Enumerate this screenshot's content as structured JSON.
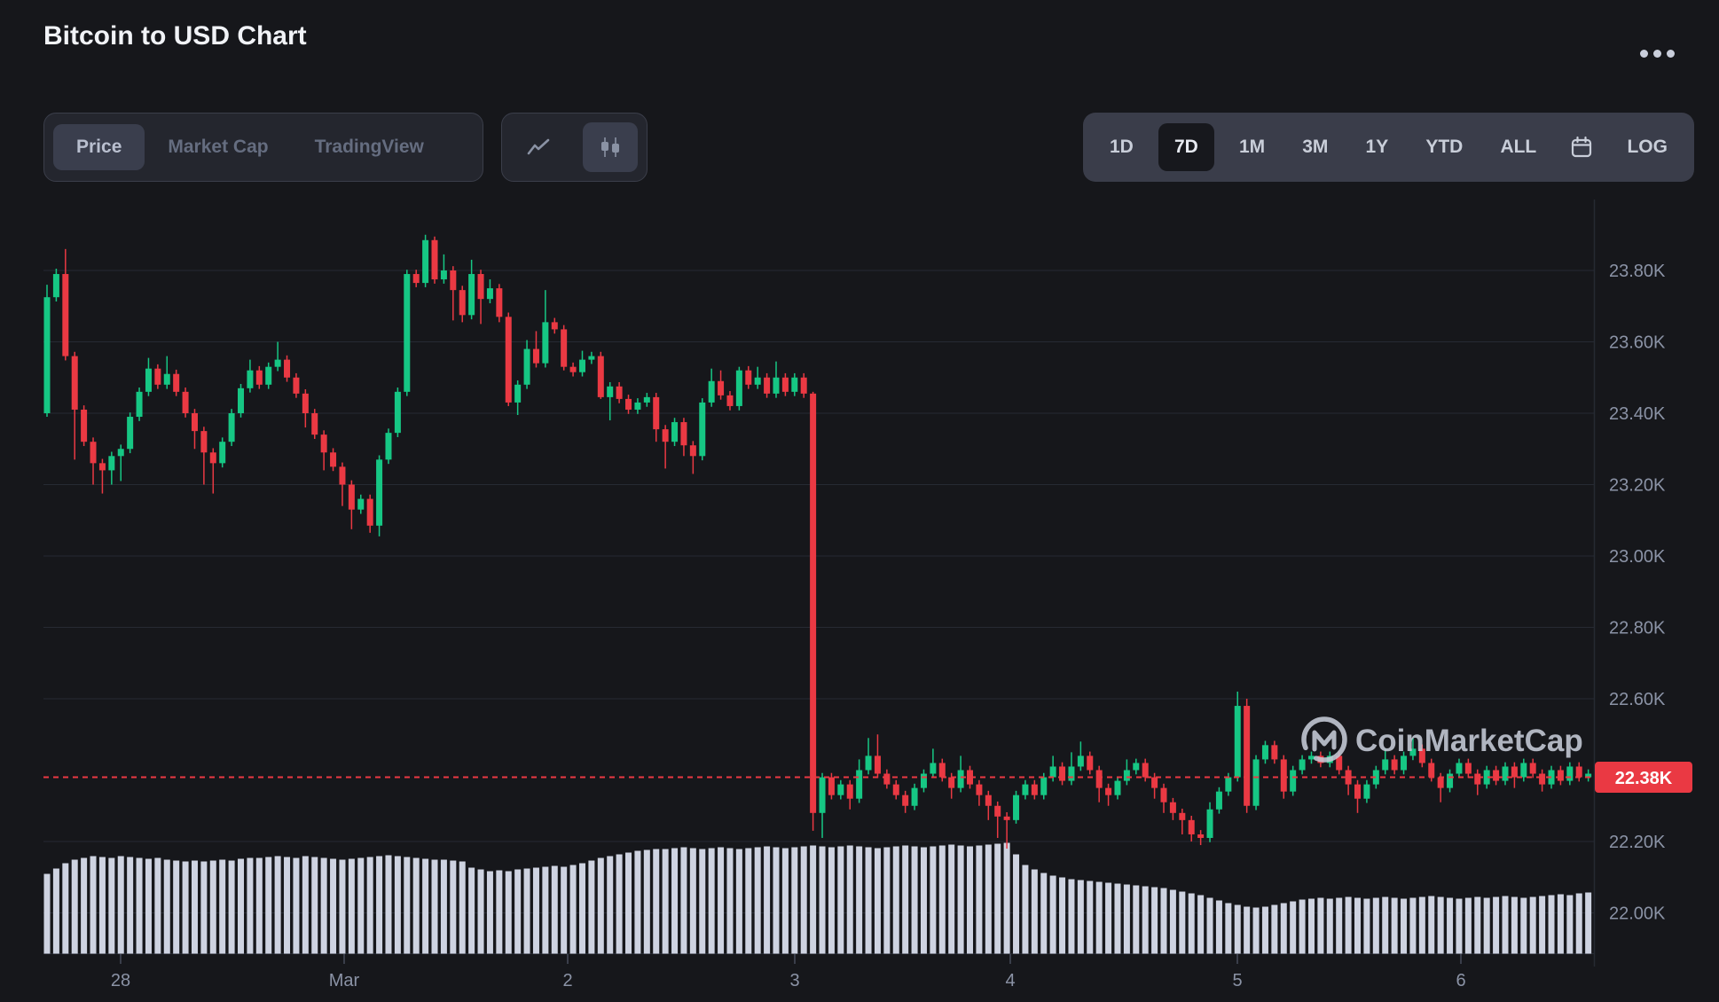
{
  "header": {
    "title": "Bitcoin to USD Chart"
  },
  "toolbar": {
    "view_tabs": [
      {
        "label": "Price",
        "active": true
      },
      {
        "label": "Market Cap",
        "active": false
      },
      {
        "label": "TradingView",
        "active": false
      }
    ],
    "chart_type": {
      "options": [
        "line",
        "candlestick"
      ],
      "active": "candlestick"
    },
    "ranges": [
      "1D",
      "7D",
      "1M",
      "3M",
      "1Y",
      "YTD",
      "ALL"
    ],
    "active_range": "7D",
    "log_label": "LOG"
  },
  "watermark": {
    "text": "CoinMarketCap"
  },
  "chart_data": {
    "type": "candlestick",
    "title": "Bitcoin to USD, 7 day hourly candles",
    "interval": "1h",
    "x_axis": {
      "tick_labels": [
        "28",
        "Mar",
        "2",
        "3",
        "4",
        "5",
        "6"
      ],
      "tick_x": [
        136,
        388,
        640,
        896,
        1139,
        1395,
        1647
      ]
    },
    "y_axis": {
      "tick_prices": [
        23.8,
        23.6,
        23.4,
        23.2,
        23.0,
        22.8,
        22.6,
        22.2,
        22.0
      ],
      "unit": "K USD",
      "range": [
        21.95,
        23.95
      ]
    },
    "current_price": {
      "label": "22.38K",
      "value": 22.38
    },
    "colors": {
      "up": "#16c784",
      "down": "#ea3943",
      "volume": "#ced3e1",
      "current": "#ea3943",
      "grid": "#262a33",
      "axis_text": "#8b93a6"
    },
    "series": {
      "first_open": 23.4,
      "closes": [
        23.725,
        23.79,
        23.56,
        23.41,
        23.32,
        23.26,
        23.24,
        23.28,
        23.3,
        23.39,
        23.46,
        23.525,
        23.48,
        23.51,
        23.46,
        23.4,
        23.35,
        23.29,
        23.26,
        23.32,
        23.4,
        23.47,
        23.52,
        23.48,
        23.53,
        23.55,
        23.5,
        23.455,
        23.4,
        23.34,
        23.29,
        23.25,
        23.2,
        23.13,
        23.16,
        23.085,
        23.27,
        23.345,
        23.46,
        23.79,
        23.765,
        23.885,
        23.775,
        23.8,
        23.745,
        23.675,
        23.79,
        23.72,
        23.75,
        23.67,
        23.43,
        23.48,
        23.58,
        23.54,
        23.655,
        23.635,
        23.53,
        23.515,
        23.55,
        23.56,
        23.445,
        23.475,
        23.44,
        23.41,
        23.43,
        23.445,
        23.355,
        23.32,
        23.375,
        23.31,
        23.28,
        23.43,
        23.49,
        23.45,
        23.42,
        23.52,
        23.48,
        23.5,
        23.455,
        23.5,
        23.46,
        23.5,
        23.455,
        22.28,
        22.38,
        22.33,
        22.36,
        22.32,
        22.4,
        22.44,
        22.39,
        22.36,
        22.33,
        22.3,
        22.35,
        22.39,
        22.42,
        22.38,
        22.35,
        22.4,
        22.36,
        22.33,
        22.3,
        22.27,
        22.26,
        22.33,
        22.36,
        22.33,
        22.38,
        22.41,
        22.37,
        22.41,
        22.44,
        22.4,
        22.35,
        22.33,
        22.37,
        22.4,
        22.42,
        22.38,
        22.35,
        22.31,
        22.28,
        22.26,
        22.22,
        22.21,
        22.29,
        22.34,
        22.38,
        22.58,
        22.3,
        22.43,
        22.47,
        22.43,
        22.34,
        22.4,
        22.43,
        22.44,
        22.42,
        22.44,
        22.4,
        22.36,
        22.32,
        22.36,
        22.4,
        22.43,
        22.4,
        22.44,
        22.46,
        22.42,
        22.38,
        22.35,
        22.39,
        22.42,
        22.39,
        22.36,
        22.4,
        22.37,
        22.41,
        22.38,
        22.42,
        22.39,
        22.36,
        22.4,
        22.37,
        22.41,
        22.38,
        22.39
      ],
      "wick_overrides": {
        "0": [
          23.76,
          23.39
        ],
        "1": [
          23.805,
          null
        ],
        "2": [
          23.86,
          null
        ],
        "3": [
          null,
          23.27
        ],
        "5": [
          null,
          23.2
        ],
        "6": [
          null,
          23.175
        ],
        "7": [
          null,
          23.2
        ],
        "8": [
          null,
          23.21
        ],
        "11": [
          23.555,
          null
        ],
        "13": [
          23.56,
          null
        ],
        "16": [
          null,
          23.3
        ],
        "17": [
          null,
          23.2
        ],
        "18": [
          null,
          23.175
        ],
        "22": [
          23.55,
          null
        ],
        "25": [
          23.6,
          null
        ],
        "28": [
          null,
          23.36
        ],
        "30": [
          null,
          23.24
        ],
        "32": [
          null,
          23.14
        ],
        "33": [
          null,
          23.075
        ],
        "35": [
          null,
          23.065
        ],
        "36": [
          null,
          23.055
        ],
        "41": [
          23.9,
          null
        ],
        "42": [
          23.895,
          null
        ],
        "43": [
          23.845,
          null
        ],
        "44": [
          null,
          23.66
        ],
        "45": [
          null,
          23.655
        ],
        "46": [
          23.83,
          null
        ],
        "47": [
          null,
          23.65
        ],
        "48": [
          23.775,
          null
        ],
        "49": [
          null,
          23.655
        ],
        "50": [
          null,
          23.42
        ],
        "51": [
          null,
          23.395
        ],
        "52": [
          23.605,
          null
        ],
        "53": [
          23.63,
          null
        ],
        "54": [
          23.745,
          null
        ],
        "56": [
          null,
          23.52
        ],
        "58": [
          23.575,
          null
        ],
        "60": [
          null,
          23.44
        ],
        "61": [
          null,
          23.38
        ],
        "66": [
          null,
          23.32
        ],
        "67": [
          null,
          23.245
        ],
        "69": [
          null,
          23.28
        ],
        "70": [
          null,
          23.23
        ],
        "72": [
          23.525,
          null
        ],
        "73": [
          23.52,
          null
        ],
        "75": [
          23.53,
          null
        ],
        "77": [
          23.53,
          null
        ],
        "79": [
          23.545,
          null
        ],
        "83": [
          23.46,
          22.23
        ],
        "84": [
          null,
          22.21
        ],
        "87": [
          null,
          22.29
        ],
        "88": [
          22.43,
          null
        ],
        "89": [
          22.49,
          null
        ],
        "90": [
          22.5,
          null
        ],
        "93": [
          null,
          22.28
        ],
        "96": [
          22.46,
          null
        ],
        "98": [
          null,
          22.32
        ],
        "99": [
          22.44,
          null
        ],
        "101": [
          null,
          22.3
        ],
        "102": [
          null,
          22.26
        ],
        "103": [
          null,
          22.21
        ],
        "104": [
          null,
          22.18
        ],
        "105": [
          null,
          22.25
        ],
        "109": [
          22.44,
          null
        ],
        "111": [
          22.45,
          null
        ],
        "112": [
          22.48,
          null
        ],
        "114": [
          null,
          22.31
        ],
        "115": [
          null,
          22.3
        ],
        "117": [
          22.43,
          null
        ],
        "120": [
          null,
          22.32
        ],
        "121": [
          null,
          22.28
        ],
        "122": [
          null,
          22.26
        ],
        "123": [
          null,
          22.22
        ],
        "124": [
          null,
          22.2
        ],
        "125": [
          null,
          22.19
        ],
        "126": [
          22.31,
          null
        ],
        "129": [
          22.62,
          null
        ],
        "130": [
          22.6,
          22.28
        ],
        "134": [
          null,
          22.32
        ],
        "141": [
          null,
          22.33
        ],
        "142": [
          null,
          22.28
        ],
        "145": [
          22.46,
          null
        ],
        "148": [
          22.49,
          null
        ],
        "151": [
          null,
          22.31
        ],
        "155": [
          null,
          22.33
        ],
        "159": [
          null,
          22.35
        ],
        "162": [
          null,
          22.34
        ]
      },
      "volumes": [
        90,
        96,
        102,
        106,
        108,
        110,
        109,
        108,
        110,
        109,
        108,
        107,
        108,
        106,
        105,
        104,
        105,
        104,
        105,
        106,
        105,
        107,
        108,
        108,
        109,
        110,
        109,
        108,
        110,
        109,
        108,
        107,
        106,
        107,
        108,
        109,
        110,
        111,
        110,
        109,
        108,
        107,
        106,
        106,
        105,
        104,
        97,
        95,
        93,
        94,
        93,
        95,
        96,
        97,
        98,
        99,
        98,
        100,
        102,
        105,
        108,
        110,
        112,
        114,
        116,
        117,
        118,
        118,
        119,
        120,
        119,
        118,
        119,
        120,
        119,
        118,
        119,
        120,
        121,
        120,
        119,
        120,
        121,
        122,
        121,
        120,
        121,
        122,
        121,
        120,
        119,
        120,
        121,
        122,
        121,
        120,
        121,
        122,
        123,
        122,
        121,
        122,
        123,
        124,
        125,
        112,
        100,
        95,
        91,
        88,
        86,
        84,
        83,
        82,
        81,
        80,
        79,
        78,
        77,
        76,
        75,
        74,
        72,
        70,
        68,
        66,
        63,
        60,
        57,
        55,
        53,
        52,
        53,
        55,
        57,
        59,
        61,
        62,
        63,
        62,
        63,
        64,
        63,
        62,
        63,
        64,
        63,
        62,
        63,
        64,
        65,
        64,
        63,
        62,
        63,
        64,
        63,
        64,
        65,
        64,
        63,
        64,
        65,
        66,
        67,
        66,
        68,
        69
      ]
    }
  }
}
